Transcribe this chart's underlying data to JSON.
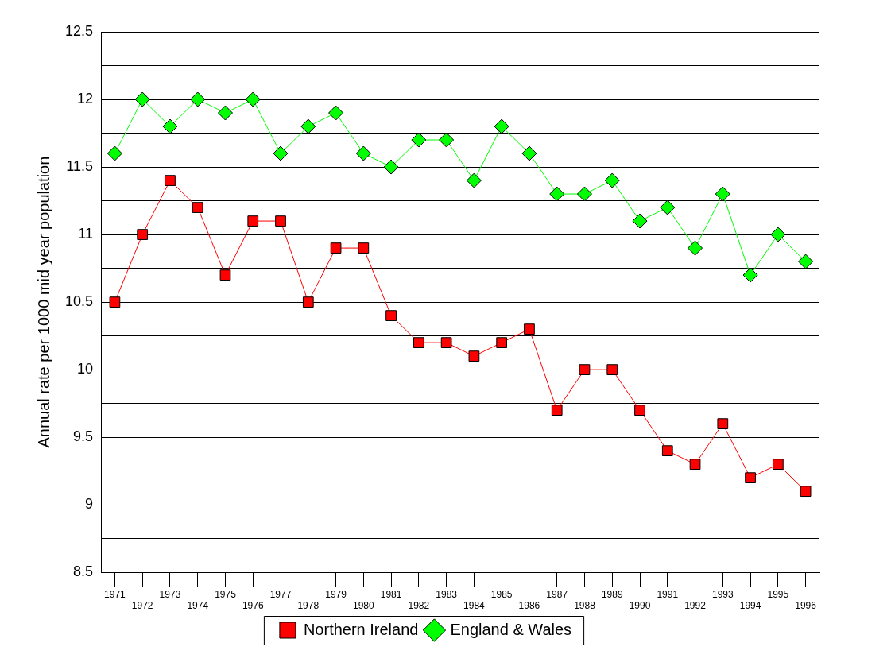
{
  "chart_data": {
    "type": "line",
    "ylabel": "Annual rate per 1000 mid year population",
    "categories": [
      "1971",
      "1972",
      "1973",
      "1974",
      "1975",
      "1976",
      "1977",
      "1978",
      "1979",
      "1980",
      "1981",
      "1982",
      "1983",
      "1984",
      "1985",
      "1986",
      "1987",
      "1988",
      "1989",
      "1990",
      "1991",
      "1992",
      "1993",
      "1994",
      "1995",
      "1996"
    ],
    "series": [
      {
        "name": "Northern Ireland",
        "color": "#ff0000",
        "marker": "square",
        "values": [
          10.5,
          11.0,
          11.4,
          11.2,
          10.7,
          11.1,
          11.1,
          10.5,
          10.9,
          10.9,
          10.4,
          10.2,
          10.2,
          10.1,
          10.2,
          10.3,
          9.7,
          10.0,
          10.0,
          9.7,
          9.4,
          9.3,
          9.6,
          9.2,
          9.3,
          9.1
        ]
      },
      {
        "name": "England & Wales",
        "color": "#00ff00",
        "marker": "diamond",
        "values": [
          11.6,
          12.0,
          11.8,
          12.0,
          11.9,
          12.0,
          11.6,
          11.8,
          11.9,
          11.6,
          11.5,
          11.7,
          11.7,
          11.4,
          11.8,
          11.6,
          11.3,
          11.3,
          11.4,
          11.1,
          11.2,
          10.9,
          11.3,
          10.7,
          11.0,
          10.8
        ]
      }
    ],
    "ylim": [
      8.5,
      12.5
    ],
    "yticks": [
      8.5,
      {
        "value": 8.75,
        "label": null
      },
      9,
      {
        "value": 9.25,
        "label": null
      },
      9.5,
      {
        "value": 9.75,
        "label": null
      },
      10,
      {
        "value": 10.25,
        "label": null
      },
      10.5,
      {
        "value": 10.75,
        "label": null
      },
      11,
      {
        "value": 11.25,
        "label": null
      },
      11.5,
      {
        "value": 11.75,
        "label": null
      },
      12,
      {
        "value": 12.25,
        "label": null
      },
      12.5
    ],
    "grid": "y",
    "legend": "bottom",
    "line_style": "solid"
  }
}
